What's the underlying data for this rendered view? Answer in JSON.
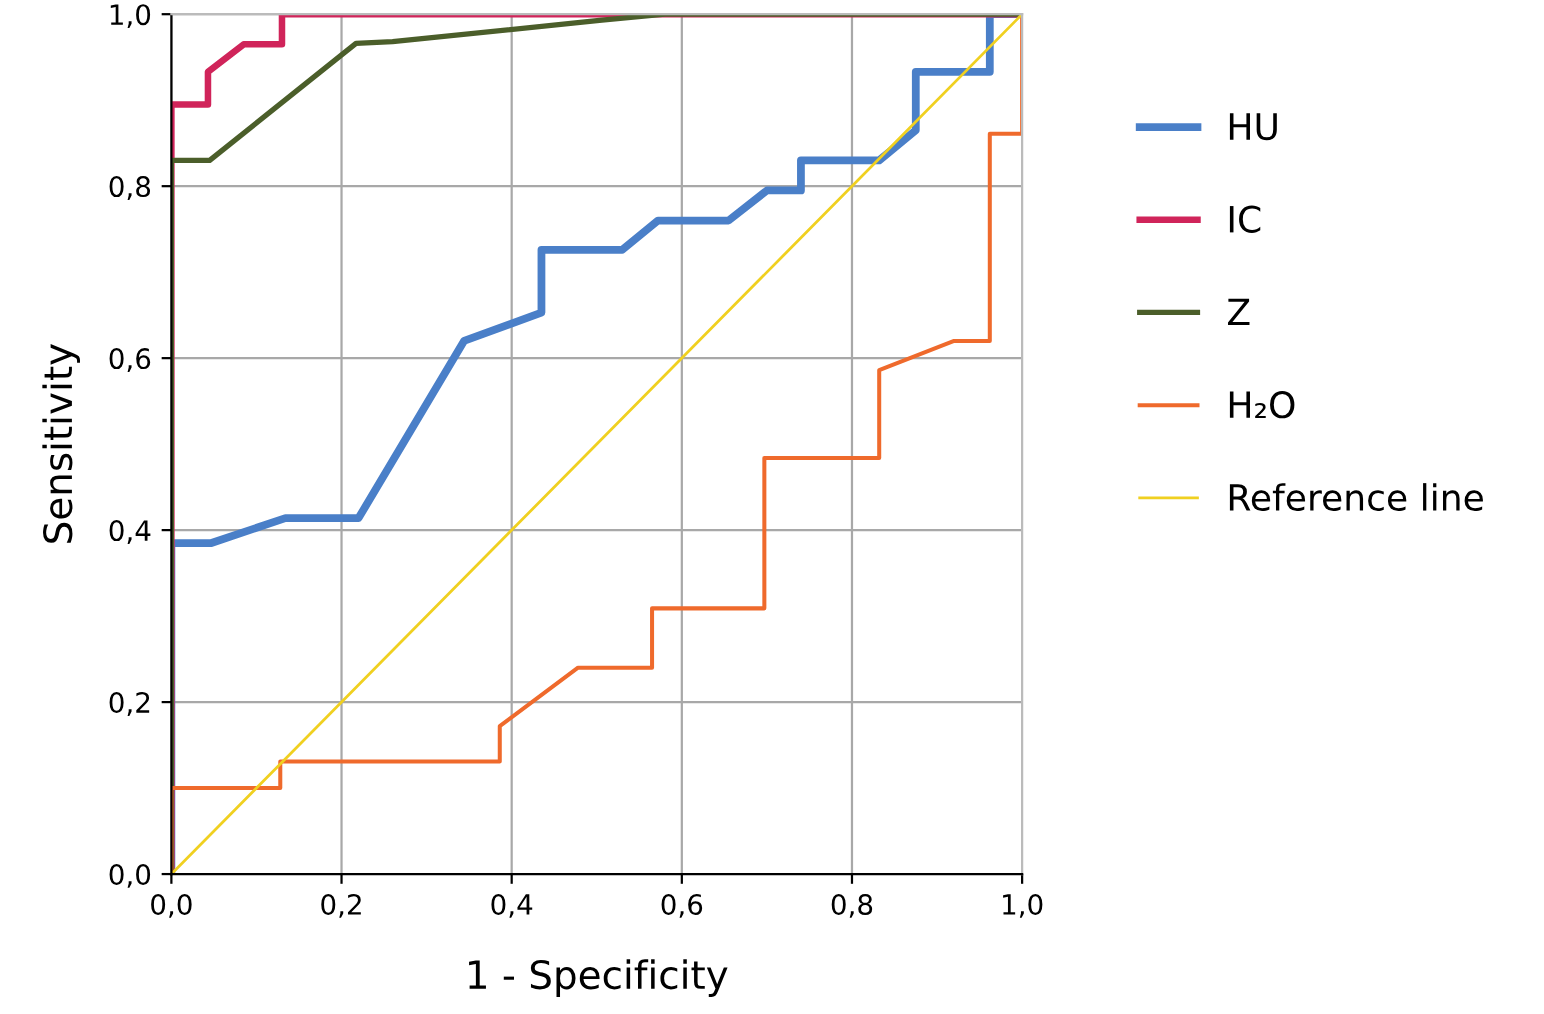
{
  "chart_data": {
    "type": "line",
    "xlabel": "1 - Specificity",
    "ylabel": "Sensitivity",
    "xlim": [
      0,
      1
    ],
    "ylim": [
      0,
      1
    ],
    "xticks": [
      {
        "value": 0,
        "label": "0,0"
      },
      {
        "value": 0.2,
        "label": "0,2"
      },
      {
        "value": 0.4,
        "label": "0,4"
      },
      {
        "value": 0.6,
        "label": "0,6"
      },
      {
        "value": 0.8,
        "label": "0,8"
      },
      {
        "value": 1,
        "label": "1,0"
      }
    ],
    "yticks": [
      {
        "value": 0,
        "label": "0,0"
      },
      {
        "value": 0.2,
        "label": "0,2"
      },
      {
        "value": 0.4,
        "label": "0,4"
      },
      {
        "value": 0.6,
        "label": "0,6"
      },
      {
        "value": 0.8,
        "label": "0,8"
      },
      {
        "value": 1,
        "label": "1,0"
      }
    ],
    "grid": true,
    "legend": "right",
    "marker": "none",
    "line_style": "solid",
    "series": [
      {
        "name": "HU",
        "color": "#4a7fc8",
        "x": [
          0,
          0,
          0.047,
          0.134,
          0.22,
          0.344,
          0.435,
          0.435,
          0.53,
          0.572,
          0.655,
          0.7,
          0.74,
          0.74,
          0.832,
          0.875,
          0.875,
          0.962,
          0.962,
          1
        ],
        "values": [
          0,
          0.385,
          0.385,
          0.414,
          0.414,
          0.62,
          0.653,
          0.726,
          0.726,
          0.76,
          0.76,
          0.795,
          0.795,
          0.83,
          0.83,
          0.865,
          0.933,
          0.933,
          1,
          1
        ]
      },
      {
        "name": "IC",
        "color": "#d0245a",
        "x": [
          0,
          0,
          0.043,
          0.043,
          0.085,
          0.13,
          0.13,
          1
        ],
        "values": [
          0,
          0.895,
          0.895,
          0.933,
          0.965,
          0.965,
          1,
          1
        ]
      },
      {
        "name": "Z",
        "color": "#4b5e2a",
        "x": [
          0,
          0,
          0.045,
          0.217,
          0.26,
          0.506,
          0.58,
          1
        ],
        "values": [
          0,
          0.83,
          0.83,
          0.966,
          0.968,
          0.993,
          1,
          1
        ]
      },
      {
        "name": "H₂O",
        "color": "#ef6a2c",
        "x": [
          0,
          0,
          0.128,
          0.128,
          0.386,
          0.386,
          0.478,
          0.565,
          0.565,
          0.697,
          0.697,
          0.832,
          0.832,
          0.92,
          0.962,
          0.962,
          1,
          1
        ],
        "values": [
          0,
          0.1,
          0.1,
          0.131,
          0.131,
          0.172,
          0.24,
          0.24,
          0.309,
          0.309,
          0.484,
          0.484,
          0.586,
          0.62,
          0.62,
          0.861,
          0.861,
          1
        ]
      },
      {
        "name": "Reference line",
        "color": "#f0d020",
        "x": [
          0,
          1
        ],
        "values": [
          0,
          1
        ]
      }
    ]
  }
}
